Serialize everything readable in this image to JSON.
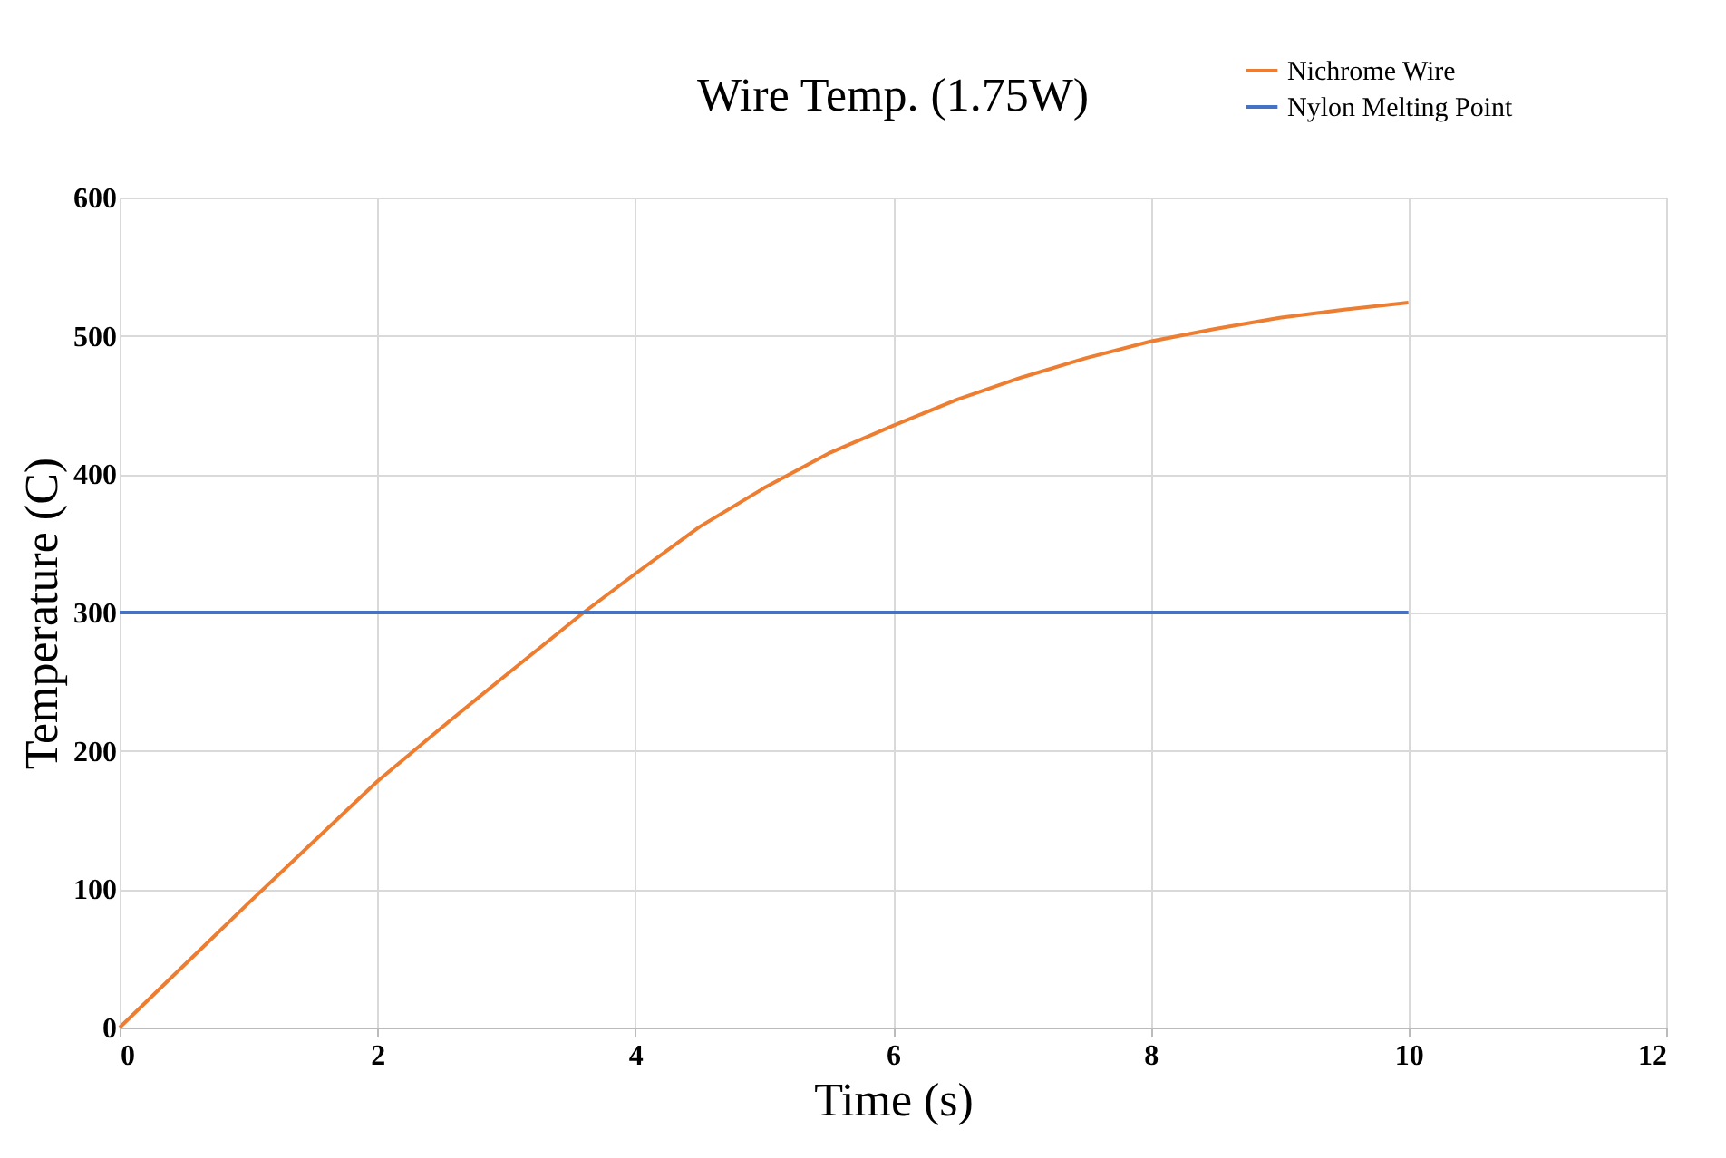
{
  "chart_data": {
    "type": "line",
    "title": "Wire Temp. (1.75W)",
    "xlabel": "Time (s)",
    "ylabel": "Temperature (C)",
    "xlim": [
      0,
      12
    ],
    "xticks": [
      0,
      2,
      4,
      6,
      8,
      10,
      12
    ],
    "ylim": [
      0,
      600
    ],
    "yticks": [
      0,
      100,
      200,
      300,
      400,
      500,
      600
    ],
    "grid": true,
    "legend": "top right",
    "marker": "none",
    "line_style": "solid",
    "series": [
      {
        "name": "Nichrome Wire",
        "color": "#ed7d31",
        "x": [
          0,
          0.5,
          1,
          1.5,
          2,
          2.5,
          3,
          3.6,
          4,
          4.5,
          5,
          5.5,
          6,
          6.5,
          7,
          7.5,
          8,
          8.5,
          9,
          9.5,
          10
        ],
        "values": [
          0,
          45,
          90,
          134,
          178,
          217,
          255,
          300,
          328,
          362,
          390,
          415,
          435,
          454,
          470,
          484,
          496,
          505,
          513,
          519,
          524
        ]
      },
      {
        "name": "Nylon Melting Point",
        "color": "#4472c4",
        "x": [
          0,
          10
        ],
        "values": [
          300,
          300
        ]
      }
    ]
  }
}
